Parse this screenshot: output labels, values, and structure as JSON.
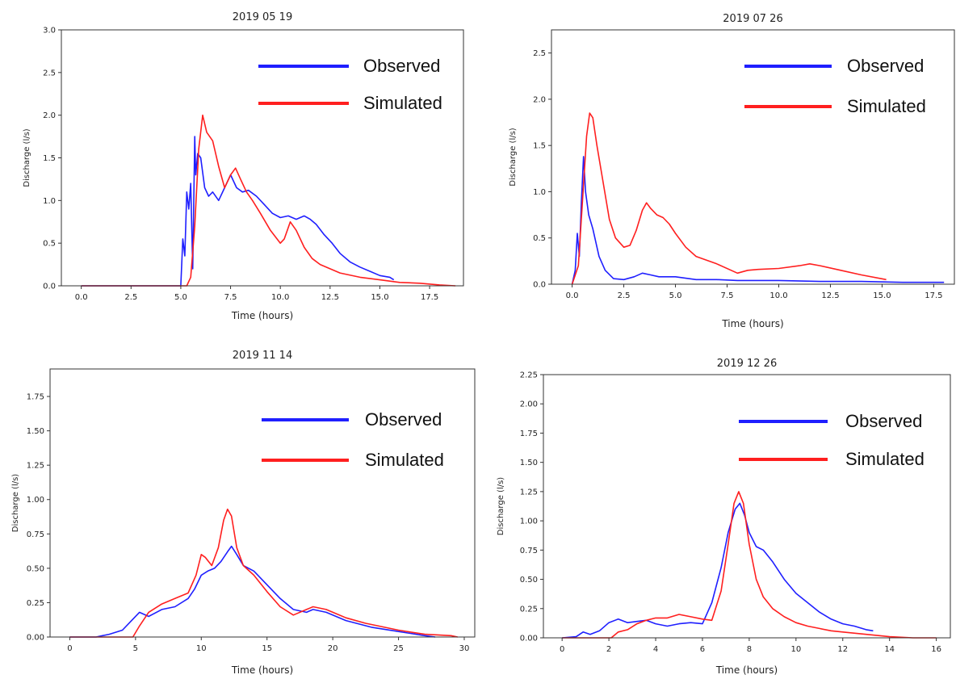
{
  "colors": {
    "observed": "#1f1fff",
    "simulated": "#ff1f1f",
    "axis": "#333333"
  },
  "chart_data": [
    {
      "type": "line",
      "title": "2019 05 19",
      "xlabel": "Time (hours)",
      "ylabel": "Discharge (l/s)",
      "xlim": [
        -1,
        19.2
      ],
      "ylim": [
        0,
        3.0
      ],
      "xticks": [
        "0.0",
        "2.5",
        "5.0",
        "7.5",
        "10.0",
        "12.5",
        "15.0",
        "17.5"
      ],
      "xtick_values": [
        0,
        2.5,
        5,
        7.5,
        10,
        12.5,
        15,
        17.5
      ],
      "yticks": [
        "0.0",
        "0.5",
        "1.0",
        "1.5",
        "2.0",
        "2.5",
        "3.0"
      ],
      "ytick_values": [
        0,
        0.5,
        1.0,
        1.5,
        2.0,
        2.5,
        3.0
      ],
      "legend": {
        "position": "top-right"
      },
      "series": [
        {
          "name": "Observed",
          "color": "#1f1fff",
          "x": [
            0,
            5.0,
            5.1,
            5.2,
            5.3,
            5.4,
            5.5,
            5.6,
            5.7,
            5.75,
            5.85,
            6.0,
            6.2,
            6.4,
            6.6,
            6.9,
            7.2,
            7.5,
            7.8,
            8.1,
            8.4,
            8.8,
            9.2,
            9.6,
            10.0,
            10.4,
            10.8,
            11.2,
            11.5,
            11.8,
            12.2,
            12.6,
            13.0,
            13.5,
            14.0,
            14.5,
            15.0,
            15.5,
            15.7
          ],
          "y": [
            0,
            0,
            0.55,
            0.35,
            1.1,
            0.9,
            1.2,
            0.2,
            1.75,
            1.3,
            1.55,
            1.5,
            1.15,
            1.05,
            1.1,
            1.0,
            1.15,
            1.3,
            1.15,
            1.1,
            1.12,
            1.05,
            0.95,
            0.85,
            0.8,
            0.82,
            0.78,
            0.82,
            0.78,
            0.72,
            0.6,
            0.5,
            0.38,
            0.28,
            0.22,
            0.17,
            0.12,
            0.1,
            0.07
          ]
        },
        {
          "name": "Simulated",
          "color": "#ff1f1f",
          "x": [
            0,
            5.3,
            5.5,
            5.7,
            5.9,
            6.1,
            6.3,
            6.6,
            6.9,
            7.2,
            7.5,
            7.75,
            8.0,
            8.3,
            8.6,
            9.0,
            9.5,
            10.0,
            10.2,
            10.5,
            10.8,
            11.2,
            11.6,
            12.0,
            12.5,
            13.0,
            14.0,
            15.0,
            16.0,
            17.0,
            18.0,
            18.8
          ],
          "y": [
            0,
            0,
            0.1,
            0.7,
            1.6,
            2.0,
            1.8,
            1.7,
            1.4,
            1.15,
            1.3,
            1.38,
            1.25,
            1.1,
            1.0,
            0.85,
            0.65,
            0.5,
            0.55,
            0.75,
            0.65,
            0.45,
            0.32,
            0.25,
            0.2,
            0.15,
            0.1,
            0.07,
            0.04,
            0.03,
            0.01,
            0
          ]
        }
      ]
    },
    {
      "type": "line",
      "title": "2019 07 26",
      "xlabel": "Time (hours)",
      "ylabel": "Discharge (l/s)",
      "xlim": [
        -1,
        18.5
      ],
      "ylim": [
        0,
        2.75
      ],
      "xticks": [
        "0.0",
        "2.5",
        "5.0",
        "7.5",
        "10.0",
        "12.5",
        "15.0",
        "17.5"
      ],
      "xtick_values": [
        0,
        2.5,
        5,
        7.5,
        10,
        12.5,
        15,
        17.5
      ],
      "yticks": [
        "0.0",
        "0.5",
        "1.0",
        "1.5",
        "2.0",
        "2.5"
      ],
      "ytick_values": [
        0,
        0.5,
        1.0,
        1.5,
        2.0,
        2.5
      ],
      "legend": {
        "position": "top-right"
      },
      "series": [
        {
          "name": "Observed",
          "color": "#1f1fff",
          "x": [
            0,
            0.15,
            0.25,
            0.35,
            0.45,
            0.55,
            0.65,
            0.8,
            1.0,
            1.3,
            1.6,
            2.0,
            2.5,
            3.0,
            3.4,
            3.8,
            4.2,
            4.6,
            5.0,
            6.0,
            7.0,
            8.0,
            10.0,
            12.0,
            14.0,
            16.0,
            18.0
          ],
          "y": [
            0,
            0.15,
            0.55,
            0.3,
            0.9,
            1.38,
            1.0,
            0.75,
            0.6,
            0.3,
            0.15,
            0.06,
            0.05,
            0.08,
            0.12,
            0.1,
            0.08,
            0.08,
            0.08,
            0.05,
            0.05,
            0.04,
            0.04,
            0.03,
            0.03,
            0.02,
            0.02
          ]
        },
        {
          "name": "Simulated",
          "color": "#ff1f1f",
          "x": [
            0,
            0.3,
            0.5,
            0.7,
            0.85,
            1.0,
            1.2,
            1.5,
            1.8,
            2.1,
            2.5,
            2.8,
            3.1,
            3.4,
            3.6,
            3.8,
            4.1,
            4.4,
            4.7,
            5.0,
            5.5,
            6.0,
            7.0,
            8.0,
            8.5,
            9.0,
            10.0,
            11.0,
            11.5,
            12.0,
            13.0,
            14.0,
            15.2
          ],
          "y": [
            0,
            0.2,
            0.9,
            1.6,
            1.85,
            1.8,
            1.5,
            1.1,
            0.7,
            0.5,
            0.4,
            0.42,
            0.58,
            0.8,
            0.88,
            0.82,
            0.75,
            0.72,
            0.65,
            0.55,
            0.4,
            0.3,
            0.22,
            0.12,
            0.15,
            0.16,
            0.17,
            0.2,
            0.22,
            0.2,
            0.15,
            0.1,
            0.05
          ]
        }
      ]
    },
    {
      "type": "line",
      "title": "2019 11 14",
      "xlabel": "Time (hours)",
      "ylabel": "Discharge (l/s)",
      "xlim": [
        -1.5,
        30.8
      ],
      "ylim": [
        0,
        1.95
      ],
      "xticks": [
        "0",
        "5",
        "10",
        "15",
        "20",
        "25",
        "30"
      ],
      "xtick_values": [
        0,
        5,
        10,
        15,
        20,
        25,
        30
      ],
      "yticks": [
        "0.00",
        "0.25",
        "0.50",
        "0.75",
        "1.00",
        "1.25",
        "1.50",
        "1.75"
      ],
      "ytick_values": [
        0,
        0.25,
        0.5,
        0.75,
        1.0,
        1.25,
        1.5,
        1.75
      ],
      "legend": {
        "position": "top-right"
      },
      "series": [
        {
          "name": "Observed",
          "color": "#1f1fff",
          "x": [
            0,
            2.0,
            3.0,
            4.0,
            4.7,
            5.3,
            6.0,
            7.0,
            8.0,
            9.0,
            9.5,
            10.0,
            10.5,
            11.0,
            11.5,
            12.0,
            12.3,
            12.7,
            13.2,
            14.0,
            15.0,
            16.0,
            17.0,
            18.0,
            18.5,
            19.5,
            21.0,
            23.0,
            25.0,
            27.0,
            27.8
          ],
          "y": [
            0,
            0,
            0.02,
            0.05,
            0.12,
            0.18,
            0.15,
            0.2,
            0.22,
            0.28,
            0.35,
            0.45,
            0.48,
            0.5,
            0.55,
            0.62,
            0.66,
            0.6,
            0.52,
            0.48,
            0.38,
            0.28,
            0.2,
            0.18,
            0.2,
            0.18,
            0.12,
            0.07,
            0.04,
            0.01,
            0
          ]
        },
        {
          "name": "Simulated",
          "color": "#ff1f1f",
          "x": [
            0,
            4.8,
            5.3,
            6.0,
            7.0,
            8.0,
            9.0,
            9.6,
            10.0,
            10.3,
            10.8,
            11.3,
            11.7,
            12.0,
            12.3,
            12.7,
            13.2,
            14.0,
            15.0,
            16.0,
            17.0,
            18.0,
            18.5,
            19.5,
            21.0,
            22.5,
            23.5,
            25.0,
            27.0,
            29.0,
            29.5
          ],
          "y": [
            0,
            0,
            0.08,
            0.18,
            0.24,
            0.28,
            0.32,
            0.45,
            0.6,
            0.58,
            0.52,
            0.65,
            0.85,
            0.93,
            0.88,
            0.65,
            0.52,
            0.45,
            0.33,
            0.22,
            0.16,
            0.2,
            0.22,
            0.2,
            0.14,
            0.1,
            0.08,
            0.05,
            0.02,
            0.01,
            0
          ]
        }
      ]
    },
    {
      "type": "line",
      "title": "2019 12 26",
      "xlabel": "Time (hours)",
      "ylabel": "Discharge (l/s)",
      "xlim": [
        -0.8,
        16.6
      ],
      "ylim": [
        0,
        2.25
      ],
      "xticks": [
        "0",
        "2",
        "4",
        "6",
        "8",
        "10",
        "12",
        "14",
        "16"
      ],
      "xtick_values": [
        0,
        2,
        4,
        6,
        8,
        10,
        12,
        14,
        16
      ],
      "yticks": [
        "0.00",
        "0.25",
        "0.50",
        "0.75",
        "1.00",
        "1.25",
        "1.50",
        "1.75",
        "2.00",
        "2.25"
      ],
      "ytick_values": [
        0,
        0.25,
        0.5,
        0.75,
        1.0,
        1.25,
        1.5,
        1.75,
        2.0,
        2.25
      ],
      "legend": {
        "position": "top-right"
      },
      "series": [
        {
          "name": "Observed",
          "color": "#1f1fff",
          "x": [
            0,
            0.6,
            0.9,
            1.2,
            1.6,
            2.0,
            2.4,
            2.8,
            3.2,
            3.6,
            4.0,
            4.5,
            5.0,
            5.5,
            6.0,
            6.4,
            6.8,
            7.1,
            7.4,
            7.6,
            7.8,
            8.0,
            8.3,
            8.6,
            9.0,
            9.5,
            10.0,
            10.5,
            11.0,
            11.5,
            12.0,
            12.5,
            13.0,
            13.3
          ],
          "y": [
            0,
            0.01,
            0.05,
            0.03,
            0.06,
            0.13,
            0.16,
            0.13,
            0.14,
            0.15,
            0.12,
            0.1,
            0.12,
            0.13,
            0.12,
            0.3,
            0.6,
            0.9,
            1.1,
            1.15,
            1.05,
            0.9,
            0.78,
            0.75,
            0.65,
            0.5,
            0.38,
            0.3,
            0.22,
            0.16,
            0.12,
            0.1,
            0.07,
            0.06
          ]
        },
        {
          "name": "Simulated",
          "color": "#ff1f1f",
          "x": [
            0,
            2.1,
            2.4,
            2.8,
            3.2,
            3.6,
            4.0,
            4.5,
            5.0,
            5.5,
            6.0,
            6.4,
            6.8,
            7.1,
            7.35,
            7.55,
            7.75,
            8.0,
            8.3,
            8.6,
            9.0,
            9.5,
            10.0,
            10.5,
            11.0,
            11.5,
            12.0,
            13.0,
            14.0,
            15.0,
            16.0
          ],
          "y": [
            0,
            0.0,
            0.05,
            0.07,
            0.12,
            0.15,
            0.17,
            0.17,
            0.2,
            0.18,
            0.16,
            0.15,
            0.4,
            0.8,
            1.15,
            1.25,
            1.15,
            0.8,
            0.5,
            0.35,
            0.25,
            0.18,
            0.13,
            0.1,
            0.08,
            0.06,
            0.05,
            0.03,
            0.01,
            0,
            0
          ]
        }
      ]
    }
  ]
}
